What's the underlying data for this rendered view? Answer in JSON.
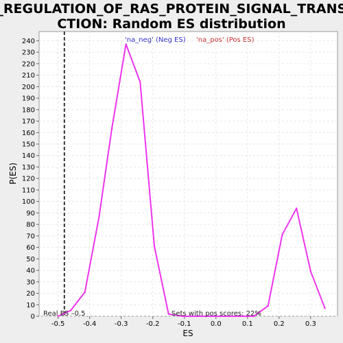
{
  "chart_data": {
    "type": "line",
    "title": [
      "GO_REGULATION_OF_RAS_PROTEIN_SIGNAL_TRANSDU",
      "CTION: Random ES distribution"
    ],
    "xlabel": "ES",
    "ylabel": "P(ES)",
    "xlim": [
      -0.56,
      0.385
    ],
    "ylim": [
      0,
      248
    ],
    "x_ticks": [
      -0.5,
      -0.4,
      -0.3,
      -0.2,
      -0.1,
      0.0,
      0.1,
      0.2,
      0.3
    ],
    "x_tick_labels": [
      "-0.5",
      "-0.4",
      "-0.3",
      "-0.2",
      "-0.1",
      "0.0",
      "0.1",
      "0.2",
      "0.3"
    ],
    "y_ticks": [
      0,
      10,
      20,
      30,
      40,
      50,
      60,
      70,
      80,
      90,
      100,
      110,
      120,
      130,
      140,
      150,
      160,
      170,
      180,
      190,
      200,
      210,
      220,
      230,
      240
    ],
    "grid": true,
    "legend": [
      {
        "label": "'na_neg' (Neg ES)",
        "color": "#3333cc"
      },
      {
        "label": "'na_pos' (Pos ES)",
        "color": "#cc3333"
      }
    ],
    "legend_position": "top-center",
    "series": [
      {
        "color": "#ee33ee",
        "x": [
          -0.5,
          -0.46,
          -0.415,
          -0.37,
          -0.33,
          -0.285,
          -0.24,
          -0.195,
          -0.15,
          -0.105,
          -0.06,
          -0.015,
          0.03,
          0.075,
          0.12,
          0.165,
          0.21,
          0.255,
          0.3,
          0.345
        ],
        "y": [
          0,
          5,
          21,
          87,
          163,
          237,
          204,
          61,
          2,
          0,
          0,
          0,
          0,
          0,
          0,
          9,
          71,
          94,
          39,
          7
        ]
      }
    ],
    "real_es": -0.48,
    "annotations": {
      "real_es_label": "Real ES –0.5",
      "pos_scores_label": "Sets with pos scores: 22%"
    }
  }
}
